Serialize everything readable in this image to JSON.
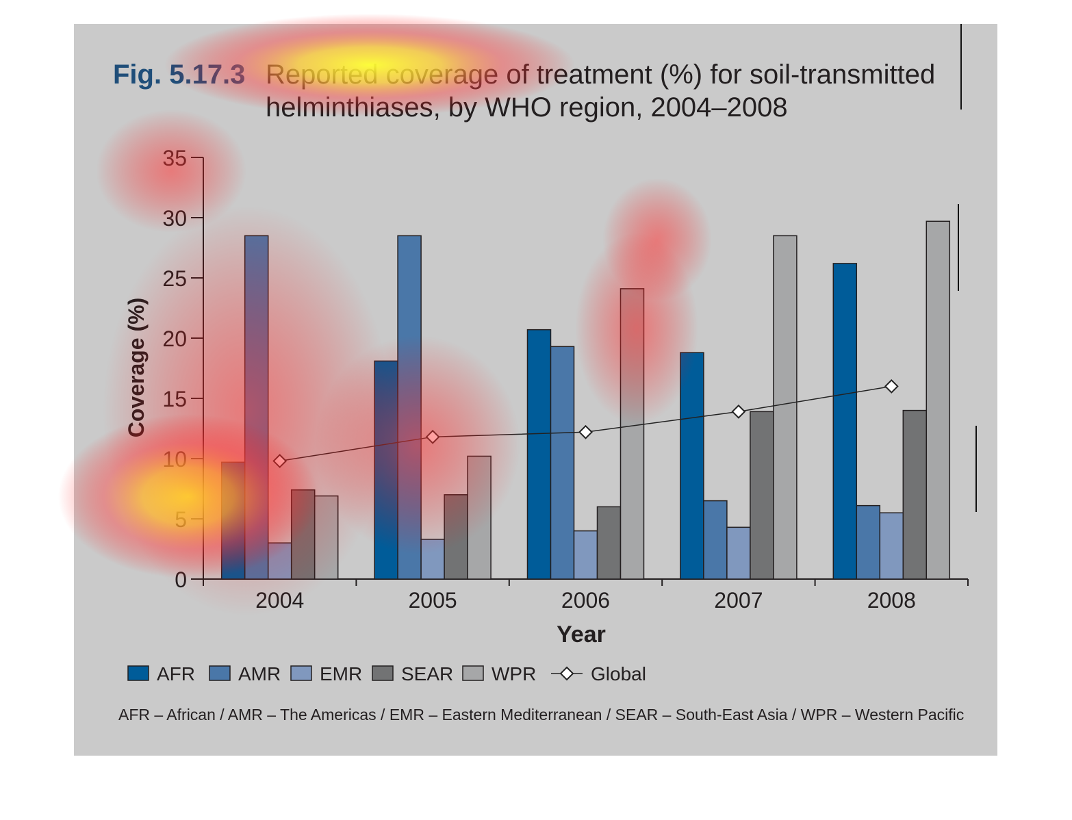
{
  "figure": {
    "number": "Fig. 5.17.3",
    "title_line1": "Reported coverage of treatment (%) for soil-transmitted",
    "title_line2": "helminthiases, by WHO region, 2004–2008",
    "footnote": "AFR – African / AMR – The Americas / EMR – Eastern Mediterranean / SEAR – South-East Asia / WPR – Western Pacific"
  },
  "colors": {
    "panel": "#cacaca",
    "fig_number": "#1f4e79",
    "AFR": "#005c99",
    "AMR": "#4a77a8",
    "EMR": "#8098be",
    "SEAR": "#727374",
    "WPR": "#a6a7a8",
    "line": "#222222"
  },
  "chart_data": {
    "type": "bar",
    "xlabel": "Year",
    "ylabel": "Coverage (%)",
    "ylim": [
      0,
      35
    ],
    "yticks": [
      0,
      5,
      10,
      15,
      20,
      25,
      30,
      35
    ],
    "categories": [
      "2004",
      "2005",
      "2006",
      "2007",
      "2008"
    ],
    "legend_position": "bottom",
    "grid": false,
    "series": [
      {
        "name": "AFR",
        "values": [
          9.7,
          18.1,
          20.7,
          18.8,
          26.2
        ]
      },
      {
        "name": "AMR",
        "values": [
          28.5,
          28.5,
          19.3,
          6.5,
          6.1
        ]
      },
      {
        "name": "EMR",
        "values": [
          3.0,
          3.3,
          4.0,
          4.3,
          5.5
        ]
      },
      {
        "name": "SEAR",
        "values": [
          7.4,
          7.0,
          6.0,
          13.9,
          14.0
        ]
      },
      {
        "name": "WPR",
        "values": [
          6.9,
          10.2,
          24.1,
          28.5,
          29.7
        ]
      }
    ],
    "line_series": {
      "name": "Global",
      "type": "line",
      "marker": "diamond",
      "values": [
        9.8,
        11.8,
        12.2,
        13.9,
        16.0
      ]
    }
  }
}
